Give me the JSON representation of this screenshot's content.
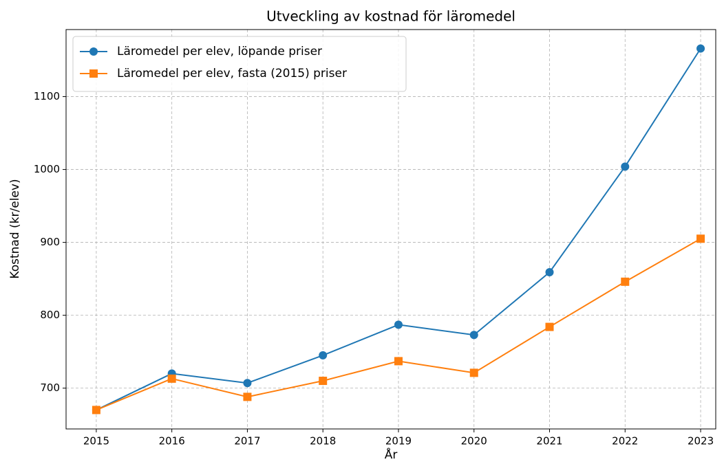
{
  "chart_data": {
    "type": "line",
    "title": "Utveckling av kostnad för läromedel",
    "xlabel": "År",
    "ylabel": "Kostnad (kr/elev)",
    "x": [
      2015,
      2016,
      2017,
      2018,
      2019,
      2020,
      2021,
      2022,
      2023
    ],
    "series": [
      {
        "name": "Läromedel per elev, löpande priser",
        "color": "#1f77b4",
        "marker": "o",
        "values": [
          670,
          720,
          707,
          745,
          787,
          773,
          859,
          1004,
          1166
        ]
      },
      {
        "name": "Läromedel per elev, fasta (2015) priser",
        "color": "#ff7f0e",
        "marker": "s",
        "values": [
          670,
          713,
          688,
          710,
          737,
          721,
          784,
          846,
          905
        ]
      }
    ],
    "xlim": [
      2014.6,
      2023.2
    ],
    "xticks": [
      2015,
      2016,
      2017,
      2018,
      2019,
      2020,
      2021,
      2022,
      2023
    ],
    "ylim": [
      644,
      1192
    ],
    "yticks": [
      700,
      800,
      900,
      1000,
      1100
    ],
    "grid": true,
    "legend": "upper left"
  }
}
